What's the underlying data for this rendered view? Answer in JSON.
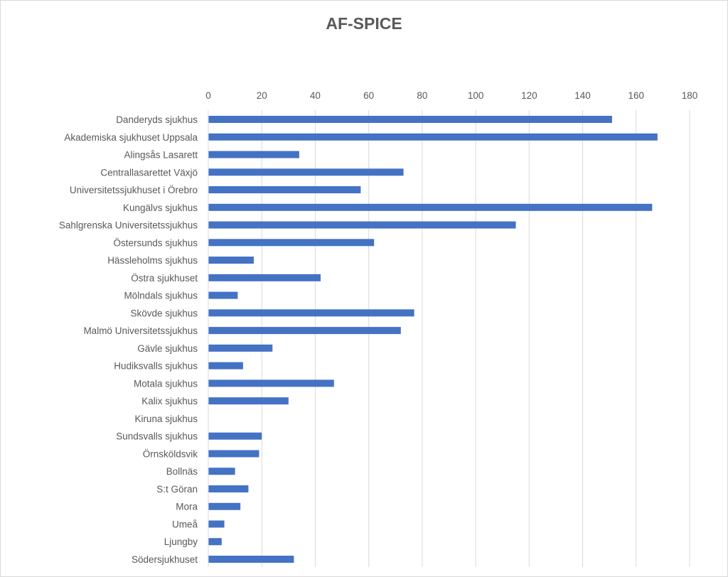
{
  "chart_data": {
    "type": "bar",
    "orientation": "horizontal",
    "title": "AF-SPICE",
    "xlabel": "",
    "ylabel": "",
    "xlim": [
      0,
      180
    ],
    "xticks": [
      0,
      20,
      40,
      60,
      80,
      100,
      120,
      140,
      160,
      180
    ],
    "grid": true,
    "bar_color": "#4472c4",
    "categories": [
      "Danderyds sjukhus",
      "Akademiska sjukhuset Uppsala",
      "Alingsås Lasarett",
      "Centrallasarettet Växjö",
      "Universitetssjukhuset i Örebro",
      "Kungälvs sjukhus",
      "Sahlgrenska Universitetssjukhus",
      "Östersunds sjukhus",
      "Hässleholms sjukhus",
      "Östra sjukhuset",
      "Mölndals sjukhus",
      "Skövde sjukhus",
      "Malmö Universitetssjukhus",
      "Gävle sjukhus",
      "Hudiksvalls sjukhus",
      "Motala sjukhus",
      "Kalix sjukhus",
      "Kiruna sjukhus",
      "Sundsvalls sjukhus",
      "Örnsköldsvik",
      "Bollnäs",
      "S:t Göran",
      "Mora",
      "Umeå",
      "Ljungby",
      "Södersjukhuset"
    ],
    "values": [
      151,
      168,
      34,
      73,
      57,
      166,
      115,
      62,
      17,
      42,
      11,
      77,
      72,
      24,
      13,
      47,
      30,
      0,
      20,
      19,
      10,
      15,
      12,
      6,
      5,
      32
    ]
  }
}
